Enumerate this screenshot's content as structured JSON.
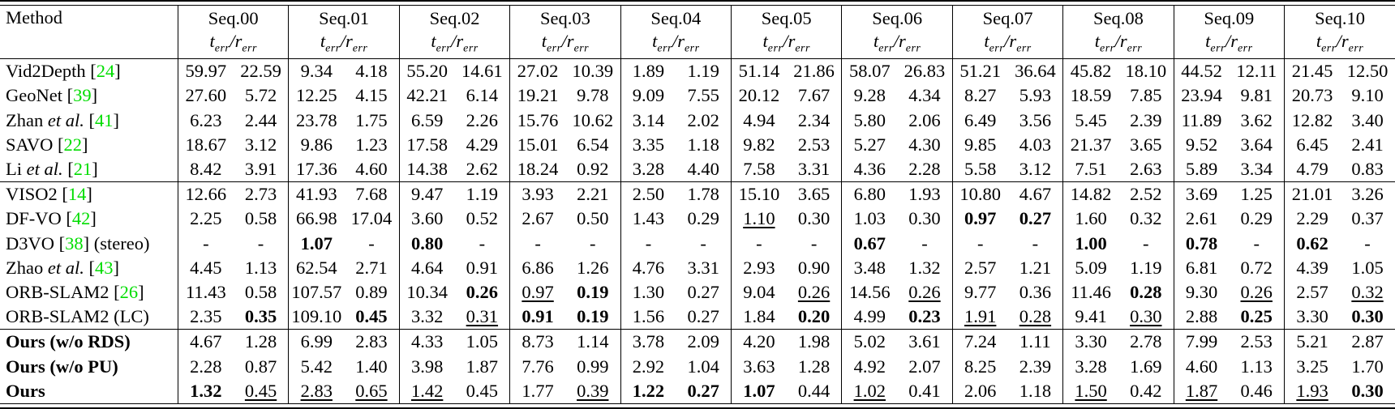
{
  "colors": {
    "background": "#ffffff",
    "text": "#000000",
    "citation_green": "#00dd00"
  },
  "style_legend": {
    "n": "normal",
    "b": "bold",
    "u": "underline"
  },
  "labels": {
    "et_al": "et al."
  },
  "header": {
    "method_label": "Method",
    "metric": {
      "t_sym": "t",
      "sub": "err",
      "sep": "/",
      "r_sym": "r"
    },
    "sequences": [
      "Seq.00",
      "Seq.01",
      "Seq.02",
      "Seq.03",
      "Seq.04",
      "Seq.05",
      "Seq.06",
      "Seq.07",
      "Seq.08",
      "Seq.09",
      "Seq.10"
    ]
  },
  "rows": [
    {
      "method": {
        "pre": "Vid2Depth ",
        "cite": "24"
      },
      "cells": [
        [
          "59.97",
          "n",
          "22.59",
          "n"
        ],
        [
          "9.34",
          "n",
          "4.18",
          "n"
        ],
        [
          "55.20",
          "n",
          "14.61",
          "n"
        ],
        [
          "27.02",
          "n",
          "10.39",
          "n"
        ],
        [
          "1.89",
          "n",
          "1.19",
          "n"
        ],
        [
          "51.14",
          "n",
          "21.86",
          "n"
        ],
        [
          "58.07",
          "n",
          "26.83",
          "n"
        ],
        [
          "51.21",
          "n",
          "36.64",
          "n"
        ],
        [
          "45.82",
          "n",
          "18.10",
          "n"
        ],
        [
          "44.52",
          "n",
          "12.11",
          "n"
        ],
        [
          "21.45",
          "n",
          "12.50",
          "n"
        ]
      ]
    },
    {
      "method": {
        "pre": "GeoNet ",
        "cite": "39"
      },
      "cells": [
        [
          "27.60",
          "n",
          "5.72",
          "n"
        ],
        [
          "12.25",
          "n",
          "4.15",
          "n"
        ],
        [
          "42.21",
          "n",
          "6.14",
          "n"
        ],
        [
          "19.21",
          "n",
          "9.78",
          "n"
        ],
        [
          "9.09",
          "n",
          "7.55",
          "n"
        ],
        [
          "20.12",
          "n",
          "7.67",
          "n"
        ],
        [
          "9.28",
          "n",
          "4.34",
          "n"
        ],
        [
          "8.27",
          "n",
          "5.93",
          "n"
        ],
        [
          "18.59",
          "n",
          "7.85",
          "n"
        ],
        [
          "23.94",
          "n",
          "9.81",
          "n"
        ],
        [
          "20.73",
          "n",
          "9.10",
          "n"
        ]
      ]
    },
    {
      "method": {
        "pre": "Zhan ",
        "etal": true,
        "cite": "41"
      },
      "cells": [
        [
          "6.23",
          "n",
          "2.44",
          "n"
        ],
        [
          "23.78",
          "n",
          "1.75",
          "n"
        ],
        [
          "6.59",
          "n",
          "2.26",
          "n"
        ],
        [
          "15.76",
          "n",
          "10.62",
          "n"
        ],
        [
          "3.14",
          "n",
          "2.02",
          "n"
        ],
        [
          "4.94",
          "n",
          "2.34",
          "n"
        ],
        [
          "5.80",
          "n",
          "2.06",
          "n"
        ],
        [
          "6.49",
          "n",
          "3.56",
          "n"
        ],
        [
          "5.45",
          "n",
          "2.39",
          "n"
        ],
        [
          "11.89",
          "n",
          "3.62",
          "n"
        ],
        [
          "12.82",
          "n",
          "3.40",
          "n"
        ]
      ]
    },
    {
      "method": {
        "pre": "SAVO ",
        "cite": "22"
      },
      "cells": [
        [
          "18.67",
          "n",
          "3.12",
          "n"
        ],
        [
          "9.86",
          "n",
          "1.23",
          "n"
        ],
        [
          "17.58",
          "n",
          "4.29",
          "n"
        ],
        [
          "15.01",
          "n",
          "6.54",
          "n"
        ],
        [
          "3.35",
          "n",
          "1.18",
          "n"
        ],
        [
          "9.82",
          "n",
          "2.53",
          "n"
        ],
        [
          "5.27",
          "n",
          "4.30",
          "n"
        ],
        [
          "9.85",
          "n",
          "4.03",
          "n"
        ],
        [
          "21.37",
          "n",
          "3.65",
          "n"
        ],
        [
          "9.52",
          "n",
          "3.64",
          "n"
        ],
        [
          "6.45",
          "n",
          "2.41",
          "n"
        ]
      ]
    },
    {
      "method": {
        "pre": "Li ",
        "etal": true,
        "cite": "21"
      },
      "cells": [
        [
          "8.42",
          "n",
          "3.91",
          "n"
        ],
        [
          "17.36",
          "n",
          "4.60",
          "n"
        ],
        [
          "14.38",
          "n",
          "2.62",
          "n"
        ],
        [
          "18.24",
          "n",
          "0.92",
          "n"
        ],
        [
          "3.28",
          "n",
          "4.40",
          "n"
        ],
        [
          "7.58",
          "n",
          "3.31",
          "n"
        ],
        [
          "4.36",
          "n",
          "2.28",
          "n"
        ],
        [
          "5.58",
          "n",
          "3.12",
          "n"
        ],
        [
          "7.51",
          "n",
          "2.63",
          "n"
        ],
        [
          "5.89",
          "n",
          "3.34",
          "n"
        ],
        [
          "4.79",
          "n",
          "0.83",
          "n"
        ]
      ]
    },
    {
      "method": {
        "pre": "VISO2 ",
        "cite": "14"
      },
      "group_start": true,
      "cells": [
        [
          "12.66",
          "n",
          "2.73",
          "n"
        ],
        [
          "41.93",
          "n",
          "7.68",
          "n"
        ],
        [
          "9.47",
          "n",
          "1.19",
          "n"
        ],
        [
          "3.93",
          "n",
          "2.21",
          "n"
        ],
        [
          "2.50",
          "n",
          "1.78",
          "n"
        ],
        [
          "15.10",
          "n",
          "3.65",
          "n"
        ],
        [
          "6.80",
          "n",
          "1.93",
          "n"
        ],
        [
          "10.80",
          "n",
          "4.67",
          "n"
        ],
        [
          "14.82",
          "n",
          "2.52",
          "n"
        ],
        [
          "3.69",
          "n",
          "1.25",
          "n"
        ],
        [
          "21.01",
          "n",
          "3.26",
          "n"
        ]
      ]
    },
    {
      "method": {
        "pre": "DF-VO ",
        "cite": "42"
      },
      "cells": [
        [
          "2.25",
          "n",
          "0.58",
          "n"
        ],
        [
          "66.98",
          "n",
          "17.04",
          "n"
        ],
        [
          "3.60",
          "n",
          "0.52",
          "n"
        ],
        [
          "2.67",
          "n",
          "0.50",
          "n"
        ],
        [
          "1.43",
          "n",
          "0.29",
          "n"
        ],
        [
          "1.10",
          "u",
          "0.30",
          "n"
        ],
        [
          "1.03",
          "n",
          "0.30",
          "n"
        ],
        [
          "0.97",
          "b",
          "0.27",
          "b"
        ],
        [
          "1.60",
          "n",
          "0.32",
          "n"
        ],
        [
          "2.61",
          "n",
          "0.29",
          "n"
        ],
        [
          "2.29",
          "n",
          "0.37",
          "n"
        ]
      ]
    },
    {
      "method": {
        "pre": "D3VO ",
        "cite": "38",
        "post": " (stereo)"
      },
      "cells": [
        [
          "-",
          "n",
          "-",
          "n"
        ],
        [
          "1.07",
          "b",
          "-",
          "n"
        ],
        [
          "0.80",
          "b",
          "-",
          "n"
        ],
        [
          "-",
          "n",
          "-",
          "n"
        ],
        [
          "-",
          "n",
          "-",
          "n"
        ],
        [
          "-",
          "n",
          "-",
          "n"
        ],
        [
          "0.67",
          "b",
          "-",
          "n"
        ],
        [
          "-",
          "n",
          "-",
          "n"
        ],
        [
          "1.00",
          "b",
          "-",
          "n"
        ],
        [
          "0.78",
          "b",
          "-",
          "n"
        ],
        [
          "0.62",
          "b",
          "-",
          "n"
        ]
      ]
    },
    {
      "method": {
        "pre": "Zhao ",
        "etal": true,
        "cite": "43"
      },
      "cells": [
        [
          "4.45",
          "n",
          "1.13",
          "n"
        ],
        [
          "62.54",
          "n",
          "2.71",
          "n"
        ],
        [
          "4.64",
          "n",
          "0.91",
          "n"
        ],
        [
          "6.86",
          "n",
          "1.26",
          "n"
        ],
        [
          "4.76",
          "n",
          "3.31",
          "n"
        ],
        [
          "2.93",
          "n",
          "0.90",
          "n"
        ],
        [
          "3.48",
          "n",
          "1.32",
          "n"
        ],
        [
          "2.57",
          "n",
          "1.21",
          "n"
        ],
        [
          "5.09",
          "n",
          "1.19",
          "n"
        ],
        [
          "6.81",
          "n",
          "0.72",
          "n"
        ],
        [
          "4.39",
          "n",
          "1.05",
          "n"
        ]
      ]
    },
    {
      "method": {
        "pre": "ORB-SLAM2 ",
        "cite": "26"
      },
      "cells": [
        [
          "11.43",
          "n",
          "0.58",
          "n"
        ],
        [
          "107.57",
          "n",
          "0.89",
          "n"
        ],
        [
          "10.34",
          "n",
          "0.26",
          "b"
        ],
        [
          "0.97",
          "u",
          "0.19",
          "b"
        ],
        [
          "1.30",
          "n",
          "0.27",
          "n"
        ],
        [
          "9.04",
          "n",
          "0.26",
          "u"
        ],
        [
          "14.56",
          "n",
          "0.26",
          "u"
        ],
        [
          "9.77",
          "n",
          "0.36",
          "n"
        ],
        [
          "11.46",
          "n",
          "0.28",
          "b"
        ],
        [
          "9.30",
          "n",
          "0.26",
          "u"
        ],
        [
          "2.57",
          "n",
          "0.32",
          "u"
        ]
      ]
    },
    {
      "method": {
        "pre": "ORB-SLAM2 (LC)"
      },
      "cells": [
        [
          "2.35",
          "n",
          "0.35",
          "b"
        ],
        [
          "109.10",
          "n",
          "0.45",
          "b"
        ],
        [
          "3.32",
          "n",
          "0.31",
          "u"
        ],
        [
          "0.91",
          "b",
          "0.19",
          "b"
        ],
        [
          "1.56",
          "n",
          "0.27",
          "n"
        ],
        [
          "1.84",
          "n",
          "0.20",
          "b"
        ],
        [
          "4.99",
          "n",
          "0.23",
          "b"
        ],
        [
          "1.91",
          "u",
          "0.28",
          "u"
        ],
        [
          "9.41",
          "n",
          "0.30",
          "u"
        ],
        [
          "2.88",
          "n",
          "0.25",
          "b"
        ],
        [
          "3.30",
          "n",
          "0.30",
          "b"
        ]
      ]
    },
    {
      "method": {
        "pre": "Ours (w/o RDS)",
        "bold": true
      },
      "group_start": true,
      "cells": [
        [
          "4.67",
          "n",
          "1.28",
          "n"
        ],
        [
          "6.99",
          "n",
          "2.83",
          "n"
        ],
        [
          "4.33",
          "n",
          "1.05",
          "n"
        ],
        [
          "8.73",
          "n",
          "1.14",
          "n"
        ],
        [
          "3.78",
          "n",
          "2.09",
          "n"
        ],
        [
          "4.20",
          "n",
          "1.98",
          "n"
        ],
        [
          "5.02",
          "n",
          "3.61",
          "n"
        ],
        [
          "7.24",
          "n",
          "1.11",
          "n"
        ],
        [
          "3.30",
          "n",
          "2.78",
          "n"
        ],
        [
          "7.99",
          "n",
          "2.53",
          "n"
        ],
        [
          "5.21",
          "n",
          "2.87",
          "n"
        ]
      ]
    },
    {
      "method": {
        "pre": "Ours (w/o PU)",
        "bold": true
      },
      "cells": [
        [
          "2.28",
          "n",
          "0.87",
          "n"
        ],
        [
          "5.42",
          "n",
          "1.40",
          "n"
        ],
        [
          "3.98",
          "n",
          "1.87",
          "n"
        ],
        [
          "7.76",
          "n",
          "0.99",
          "n"
        ],
        [
          "2.92",
          "n",
          "1.04",
          "n"
        ],
        [
          "3.63",
          "n",
          "1.28",
          "n"
        ],
        [
          "4.92",
          "n",
          "2.07",
          "n"
        ],
        [
          "8.25",
          "n",
          "2.39",
          "n"
        ],
        [
          "3.28",
          "n",
          "1.69",
          "n"
        ],
        [
          "4.60",
          "n",
          "1.13",
          "n"
        ],
        [
          "3.25",
          "n",
          "1.70",
          "n"
        ]
      ]
    },
    {
      "method": {
        "pre": "Ours",
        "bold": true
      },
      "cells": [
        [
          "1.32",
          "b",
          "0.45",
          "u"
        ],
        [
          "2.83",
          "u",
          "0.65",
          "u"
        ],
        [
          "1.42",
          "u",
          "0.45",
          "n"
        ],
        [
          "1.77",
          "n",
          "0.39",
          "u"
        ],
        [
          "1.22",
          "b",
          "0.27",
          "b"
        ],
        [
          "1.07",
          "b",
          "0.44",
          "n"
        ],
        [
          "1.02",
          "u",
          "0.41",
          "n"
        ],
        [
          "2.06",
          "n",
          "1.18",
          "n"
        ],
        [
          "1.50",
          "u",
          "0.42",
          "n"
        ],
        [
          "1.87",
          "u",
          "0.46",
          "n"
        ],
        [
          "1.93",
          "u",
          "0.30",
          "b"
        ]
      ]
    }
  ]
}
